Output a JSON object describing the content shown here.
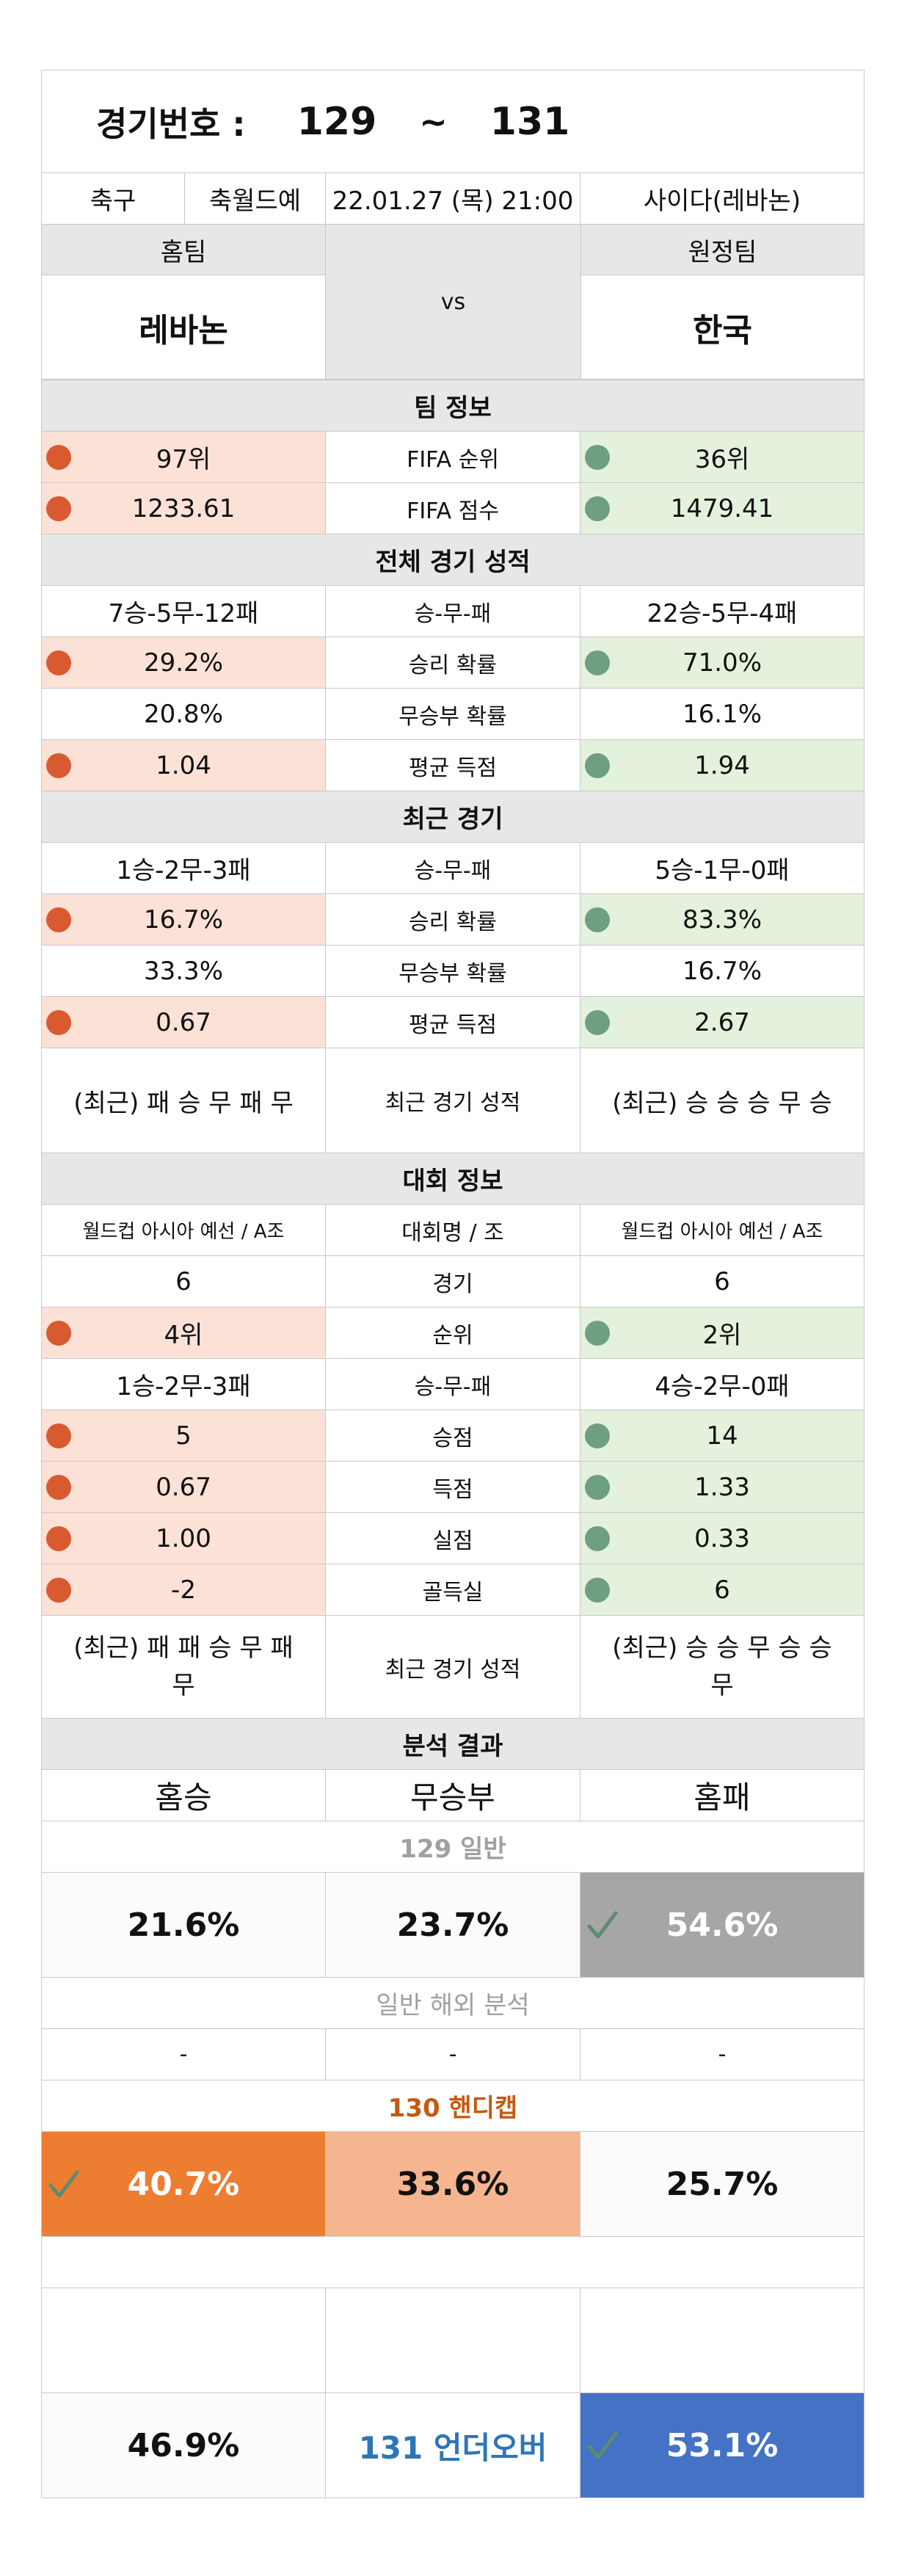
{
  "header": {
    "label": "경기번호 :",
    "from": "129",
    "tilde": "~",
    "to": "131"
  },
  "meta": {
    "sport": "축구",
    "league": "축월드예",
    "datetime": "22.01.27 (목) 21:00",
    "venue": "사이다(레바논)"
  },
  "teams": {
    "home_label": "홈팀",
    "away_label": "원정팀",
    "vs": "vs",
    "home": "레바논",
    "away": "한국"
  },
  "sections": {
    "team_info": "팀 정보",
    "overall": "전체 경기 성적",
    "recent": "최근 경기",
    "tournament": "대회 정보",
    "analysis": "분석 결과"
  },
  "team_info_rows": [
    {
      "home": "97위",
      "label": "FIFA 순위",
      "away": "36위"
    },
    {
      "home": "1233.61",
      "label": "FIFA 점수",
      "away": "1479.41"
    }
  ],
  "overall_rows": [
    {
      "home": "7승-5무-12패",
      "label": "승-무-패",
      "away": "22승-5무-4패"
    },
    {
      "home": "29.2%",
      "label": "승리 확률",
      "away": "71.0%"
    },
    {
      "home": "20.8%",
      "label": "무승부 확률",
      "away": "16.1%"
    },
    {
      "home": "1.04",
      "label": "평균 득점",
      "away": "1.94"
    }
  ],
  "recent_rows": [
    {
      "home": "1승-2무-3패",
      "label": "승-무-패",
      "away": "5승-1무-0패"
    },
    {
      "home": "16.7%",
      "label": "승리 확률",
      "away": "83.3%"
    },
    {
      "home": "33.3%",
      "label": "무승부 확률",
      "away": "16.7%"
    },
    {
      "home": "0.67",
      "label": "평균 득점",
      "away": "2.67"
    },
    {
      "home": "(최근) 패 승 무 패 무",
      "label": "최근 경기 성적",
      "away": "(최근) 승 승 승 무 승"
    }
  ],
  "tournament_rows": [
    {
      "home": "월드컵 아시아 예선 / A조",
      "label": "대회명 / 조",
      "away": "월드컵 아시아 예선 / A조"
    },
    {
      "home": "6",
      "label": "경기",
      "away": "6"
    },
    {
      "home": "4위",
      "label": "순위",
      "away": "2위"
    },
    {
      "home": "1승-2무-3패",
      "label": "승-무-패",
      "away": "4승-2무-0패"
    },
    {
      "home": "5",
      "label": "승점",
      "away": "14"
    },
    {
      "home": "0.67",
      "label": "득점",
      "away": "1.33"
    },
    {
      "home": "1.00",
      "label": "실점",
      "away": "0.33"
    },
    {
      "home": "-2",
      "label": "골득실",
      "away": "6"
    },
    {
      "home": "(최근) 패 패 승 무 패\n무",
      "label": "최근 경기 성적",
      "away": "(최근) 승 승 무 승 승\n무"
    }
  ],
  "analysis": {
    "cols": [
      "홈승",
      "무승부",
      "홈패"
    ],
    "normal_title": "129 일반",
    "normal": [
      "21.6%",
      "23.7%",
      "54.6%"
    ],
    "overseas_title": "일반 해외 분석",
    "overseas": [
      "-",
      "-",
      "-"
    ],
    "handicap_title": "130 핸디캡",
    "handicap": [
      "40.7%",
      "33.6%",
      "25.7%"
    ],
    "underover_title": "131 언더오버",
    "underover": [
      "46.9%",
      "53.1%"
    ]
  },
  "colors": {
    "gray_header": "#e7e7e7",
    "home_bad": "#fce1d7",
    "away_good": "#e4f1dc",
    "dot_red": "#d95a30",
    "dot_green": "#6e9f83",
    "pick_gray": "#a6a6a6",
    "pick_orange": "#ed7d31",
    "handicap_draw": "#f4b58f",
    "pick_blue": "#4472c4",
    "handicap_title": "#c55a11",
    "underover_title": "#2e75b6",
    "muted_title": "#a0a0a0"
  }
}
